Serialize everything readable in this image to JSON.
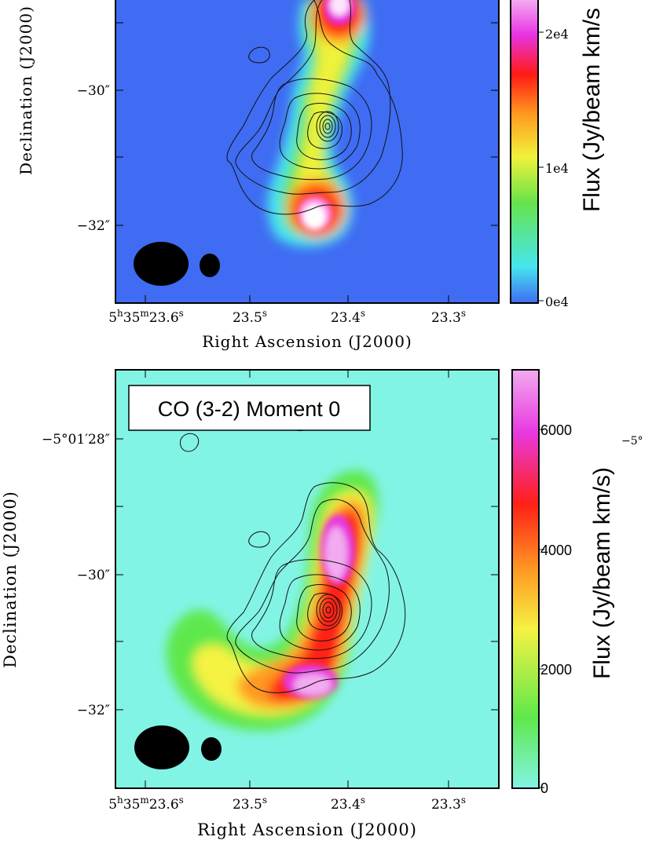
{
  "chart_data": [
    {
      "type": "heatmap",
      "title": "",
      "xlabel": "Right Ascension (J2000)",
      "ylabel": "Declination (J2000)",
      "x_ticks": [
        "5h35m23.6s",
        "23.5s",
        "23.4s",
        "23.3s"
      ],
      "y_ticks": [
        "−30″",
        "−32″"
      ],
      "colorbar": {
        "label": "Flux (Jy/beam km/s",
        "ticks": [
          "0e4",
          "1e4",
          "2e4"
        ],
        "tick_values": [
          0,
          10000,
          20000
        ],
        "range": [
          0,
          26000
        ]
      },
      "colormap": [
        "#3f6cf2",
        "#46e6ee",
        "#66e34a",
        "#f0f23a",
        "#ff9a1f",
        "#ff1a14",
        "#e733e2",
        "#ffffff"
      ],
      "beams": [
        "large-beam",
        "small-beam"
      ]
    },
    {
      "type": "heatmap",
      "title": "CO (3-2) Moment 0",
      "xlabel": "Right Ascension (J2000)",
      "ylabel": "Declination (J2000)",
      "x_ticks": [
        "5h35m23.6s",
        "23.5s",
        "23.4s",
        "23.3s"
      ],
      "y_ticks": [
        "−5°01′28″",
        "−30″",
        "−32″"
      ],
      "colorbar": {
        "label": "Flux (Jy/beam km/s)",
        "ticks": [
          "0",
          "2000",
          "4000",
          "6000"
        ],
        "tick_values": [
          0,
          2000,
          4000,
          6000
        ],
        "range": [
          0,
          7000
        ]
      },
      "colormap": [
        "#82f4e6",
        "#5fe84b",
        "#f5f243",
        "#ff9a24",
        "#ff2016",
        "#e839e0",
        "#f2aaf0"
      ],
      "beams": [
        "large-beam",
        "small-beam"
      ],
      "clipped_side_label": "−5°"
    }
  ]
}
